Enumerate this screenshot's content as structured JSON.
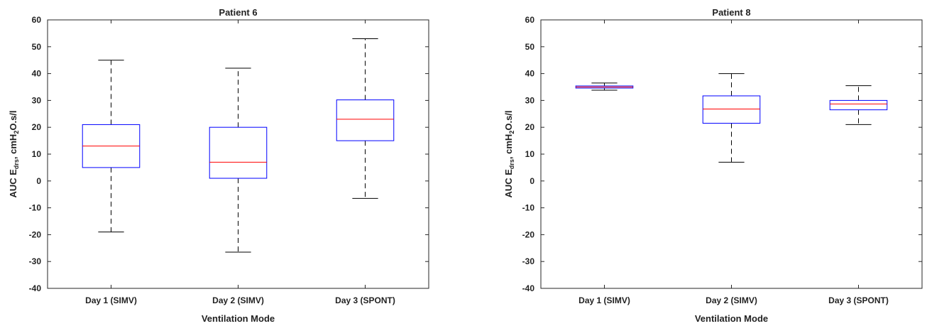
{
  "chart_data": [
    {
      "type": "boxplot",
      "title": "Patient 6",
      "xlabel": "Ventilation Mode",
      "ylabel": {
        "prefix": "AUC E",
        "sub1": "drs",
        "mid": ", cmH",
        "sub2": "2",
        "suffix": "O.s/l"
      },
      "ylim": [
        -40,
        60
      ],
      "yticks": [
        -40,
        -30,
        -20,
        -10,
        0,
        10,
        20,
        30,
        40,
        50,
        60
      ],
      "categories": [
        "Day 1 (SIMV)",
        "Day 2 (SIMV)",
        "Day 3 (SPONT)"
      ],
      "boxes": [
        {
          "whisker_low": -19,
          "q1": 5,
          "median": 13,
          "q3": 21,
          "whisker_high": 45
        },
        {
          "whisker_low": -26.5,
          "q1": 1,
          "median": 7,
          "q3": 20,
          "whisker_high": 42
        },
        {
          "whisker_low": -6.5,
          "q1": 15,
          "median": 23,
          "q3": 30.2,
          "whisker_high": 53
        }
      ],
      "grid": false
    },
    {
      "type": "boxplot",
      "title": "Patient 8",
      "xlabel": "Ventilation Mode",
      "ylabel": {
        "prefix": "AUC E",
        "sub1": "drs",
        "mid": ", cmH",
        "sub2": "2",
        "suffix": "O.s/l"
      },
      "ylim": [
        -40,
        60
      ],
      "yticks": [
        -40,
        -30,
        -20,
        -10,
        0,
        10,
        20,
        30,
        40,
        50,
        60
      ],
      "categories": [
        "Day 1 (SIMV)",
        "Day 2 (SIMV)",
        "Day 3 (SPONT)"
      ],
      "boxes": [
        {
          "whisker_low": 33.8,
          "q1": 34.6,
          "median": 35,
          "q3": 35.4,
          "whisker_high": 36.5
        },
        {
          "whisker_low": 7,
          "q1": 21.5,
          "median": 26.8,
          "q3": 31.7,
          "whisker_high": 40
        },
        {
          "whisker_low": 21,
          "q1": 26.5,
          "median": 28.7,
          "q3": 30,
          "whisker_high": 35.5
        }
      ],
      "grid": false
    }
  ],
  "colors": {
    "box": "#0000ff",
    "median": "#ff0000",
    "whisker": "#000000"
  }
}
